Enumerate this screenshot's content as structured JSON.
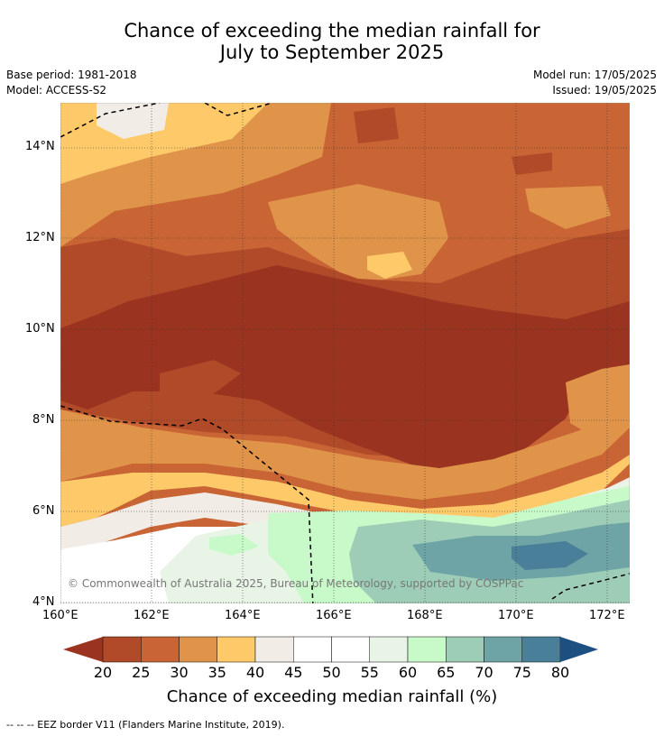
{
  "title": {
    "line1": "Chance of exceeding the median rainfall for",
    "line2": "July to September 2025"
  },
  "meta": {
    "base_period": "Base period: 1981-2018",
    "model": "Model: ACCESS-S2",
    "model_run": "Model run: 17/05/2025",
    "issued": "Issued: 19/05/2025"
  },
  "map": {
    "lat_ticks": [
      "14°N",
      "12°N",
      "10°N",
      "8°N",
      "6°N",
      "4°N"
    ],
    "lon_ticks": [
      "160°E",
      "162°E",
      "164°E",
      "166°E",
      "168°E",
      "170°E",
      "172°E"
    ],
    "copyright": "© Commonwealth of Australia 2025, Bureau of Meteorology, supported by COSPPac",
    "region_colors": {
      "c20": "#9a3320",
      "c25": "#b04a28",
      "c30": "#c96435",
      "c35": "#e0944a",
      "c40": "#fdc969",
      "c45": "#f1ede6",
      "c50": "#ffffff",
      "c55": "#ffffff",
      "c60": "#e8f5e6",
      "c65": "#c8f9c8",
      "c70": "#9dcdb6",
      "c75": "#6ea4a6",
      "c80": "#4a7f99"
    }
  },
  "colorbar": {
    "ticks": [
      "20",
      "25",
      "30",
      "35",
      "40",
      "45",
      "50",
      "55",
      "60",
      "65",
      "70",
      "75",
      "80"
    ],
    "colors": [
      "#b04a28",
      "#c96435",
      "#e0944a",
      "#fdc969",
      "#f1ede6",
      "#ffffff",
      "#ffffff",
      "#e8f5e6",
      "#c8f9c8",
      "#9dcdb6",
      "#6ea4a6",
      "#4a7f99"
    ],
    "under_color": "#9a3320",
    "over_color": "#1d4f80",
    "label": "Chance of exceeding median rainfall (%)"
  },
  "footnote": "--  --  -- EEZ border V11 (Flanders Marine Institute, 2019)."
}
